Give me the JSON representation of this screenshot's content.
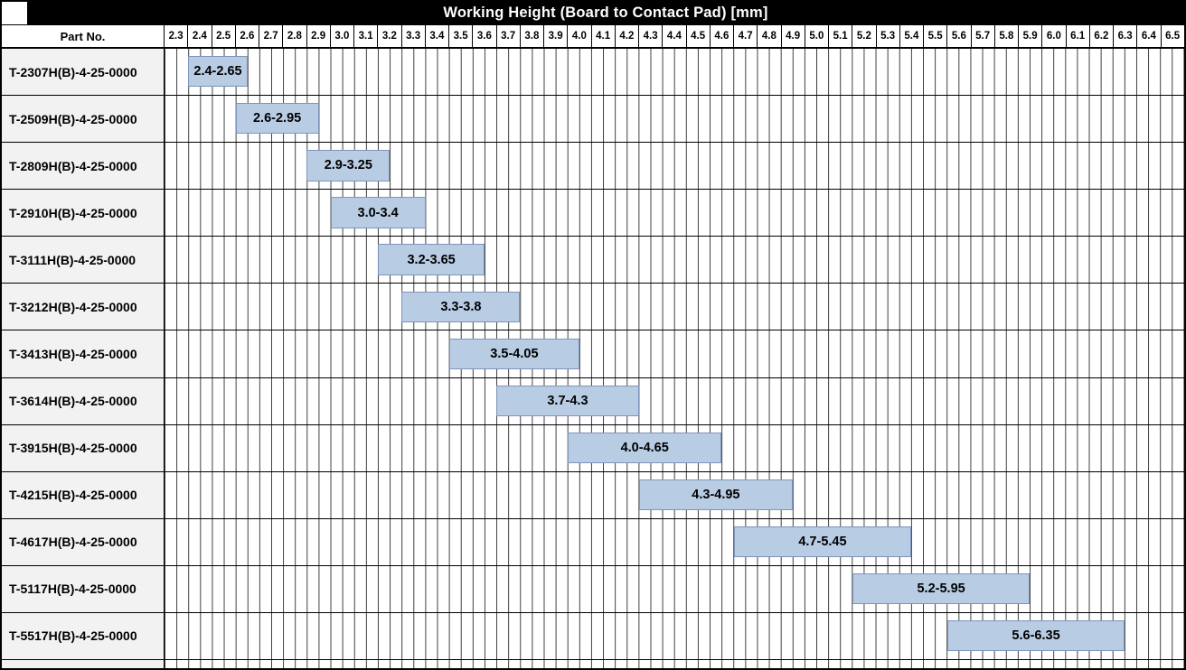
{
  "title": "Working Height (Board to Contact Pad) [mm]",
  "table": {
    "part_no_header": "Part No."
  },
  "colors": {
    "title_bg": "#000000",
    "title_text": "#ffffff",
    "bar_fill": "#b8cce4",
    "bar_border": "#7f94ba",
    "row_label_bg": "#f2f2f2",
    "grid_line": "#3c3c3c"
  },
  "chart_data": {
    "type": "bar",
    "subtype": "horizontal-range",
    "title": "Working Height (Board to Contact Pad) [mm]",
    "x_min": 2.3,
    "x_max": 6.6,
    "tick_step": 0.1,
    "grid": "on",
    "tick_labels": [
      "2.3",
      "2.4",
      "2.5",
      "2.6",
      "2.7",
      "2.8",
      "2.9",
      "3.0",
      "3.1",
      "3.2",
      "3.3",
      "3.4",
      "3.5",
      "3.6",
      "3.7",
      "3.8",
      "3.9",
      "4.0",
      "4.1",
      "4.2",
      "4.3",
      "4.4",
      "4.5",
      "4.6",
      "4.7",
      "4.8",
      "4.9",
      "5.0",
      "5.1",
      "5.2",
      "5.3",
      "5.4",
      "5.5",
      "5.6",
      "5.7",
      "5.8",
      "5.9",
      "6.0",
      "6.1",
      "6.2",
      "6.3",
      "6.4",
      "6.5"
    ],
    "rows": [
      {
        "part_no": "T-2307H(B)-4-25-0000",
        "range_start": 2.4,
        "range_end": 2.65,
        "label": "2.4-2.65"
      },
      {
        "part_no": "T-2509H(B)-4-25-0000",
        "range_start": 2.6,
        "range_end": 2.95,
        "label": "2.6-2.95"
      },
      {
        "part_no": "T-2809H(B)-4-25-0000",
        "range_start": 2.9,
        "range_end": 3.25,
        "label": "2.9-3.25"
      },
      {
        "part_no": "T-2910H(B)-4-25-0000",
        "range_start": 3.0,
        "range_end": 3.4,
        "label": "3.0-3.4"
      },
      {
        "part_no": "T-3111H(B)-4-25-0000",
        "range_start": 3.2,
        "range_end": 3.65,
        "label": "3.2-3.65"
      },
      {
        "part_no": "T-3212H(B)-4-25-0000",
        "range_start": 3.3,
        "range_end": 3.8,
        "label": "3.3-3.8"
      },
      {
        "part_no": "T-3413H(B)-4-25-0000",
        "range_start": 3.5,
        "range_end": 4.05,
        "label": "3.5-4.05"
      },
      {
        "part_no": "T-3614H(B)-4-25-0000",
        "range_start": 3.7,
        "range_end": 4.3,
        "label": "3.7-4.3"
      },
      {
        "part_no": "T-3915H(B)-4-25-0000",
        "range_start": 4.0,
        "range_end": 4.65,
        "label": "4.0-4.65"
      },
      {
        "part_no": "T-4215H(B)-4-25-0000",
        "range_start": 4.3,
        "range_end": 4.95,
        "label": "4.3-4.95"
      },
      {
        "part_no": "T-4617H(B)-4-25-0000",
        "range_start": 4.7,
        "range_end": 5.45,
        "label": "4.7-5.45"
      },
      {
        "part_no": "T-5117H(B)-4-25-0000",
        "range_start": 5.2,
        "range_end": 5.95,
        "label": "5.2-5.95"
      },
      {
        "part_no": "T-5517H(B)-4-25-0000",
        "range_start": 5.6,
        "range_end": 6.35,
        "label": "5.6-6.35"
      }
    ]
  }
}
